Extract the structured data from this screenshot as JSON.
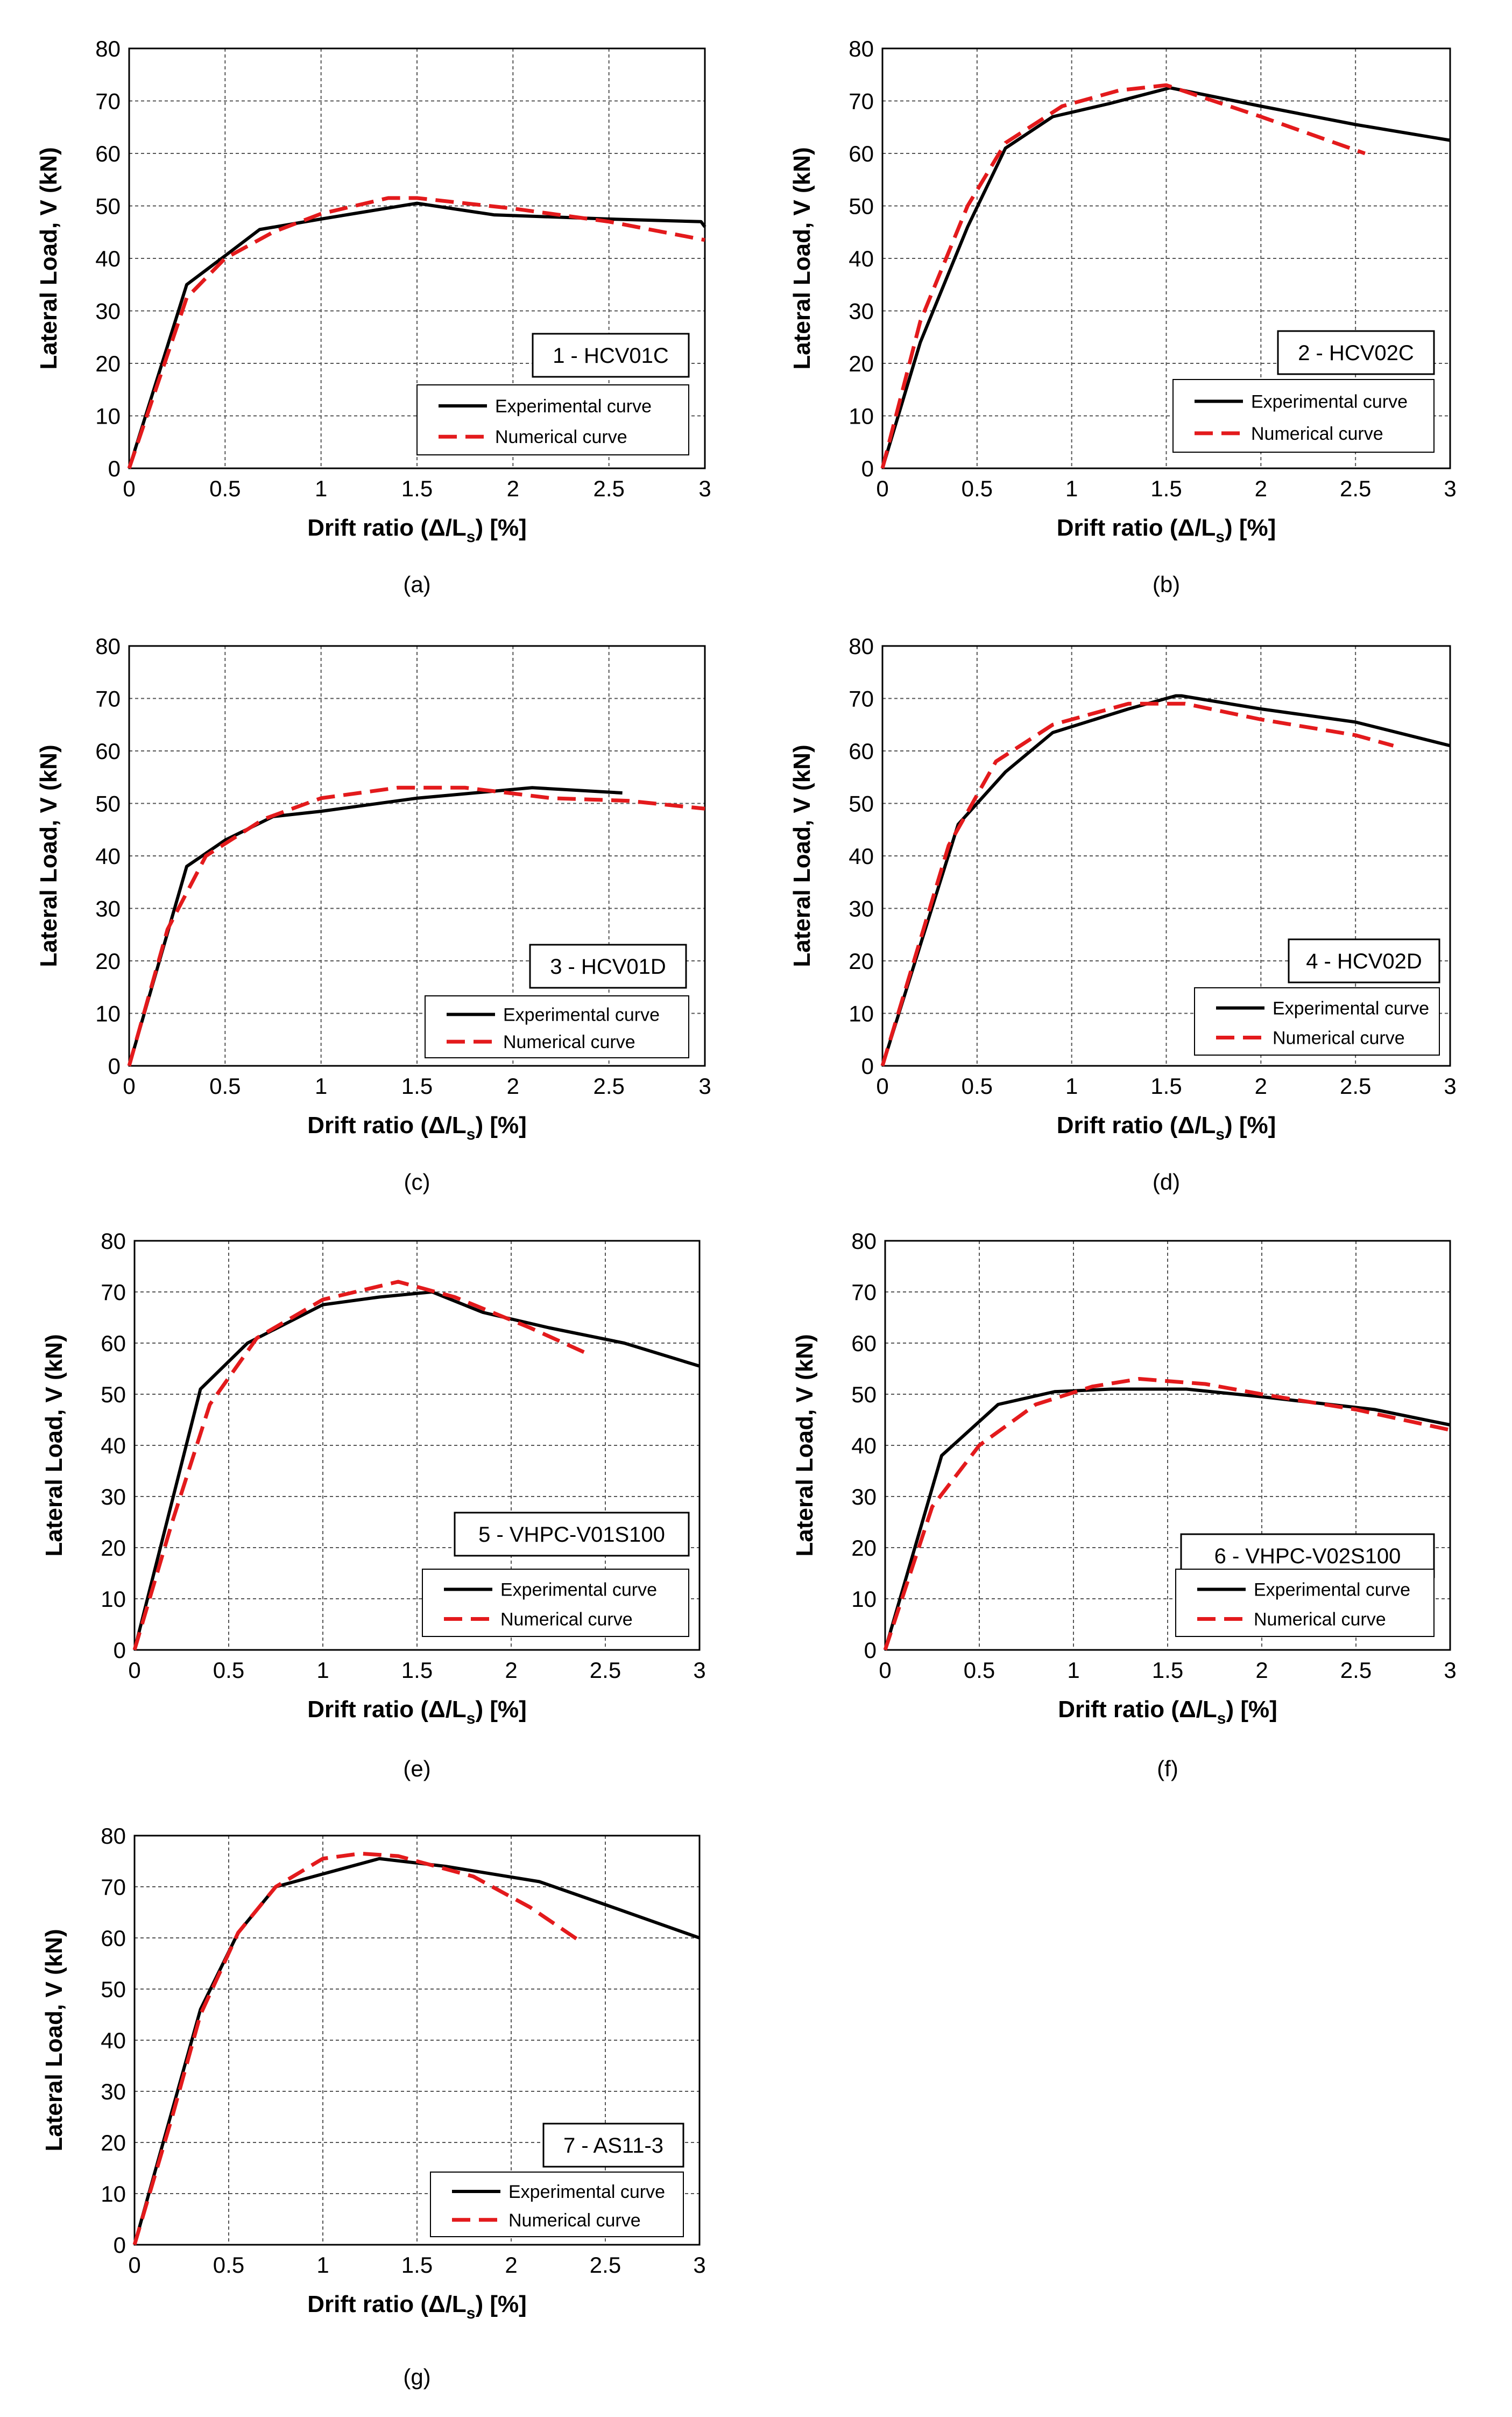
{
  "chart_data": [
    {
      "type": "line",
      "panel": "(a)",
      "label": "1 - HCV01C",
      "xlabel": "Drift ratio (Δ/L",
      "xlabel_sub": "s",
      "xlabel_end": ") [%]",
      "ylabel": "Lateral Load, V (kN)",
      "xlim": [
        0,
        3
      ],
      "ylim": [
        0,
        80
      ],
      "xticks": [
        "0",
        "0.5",
        "1",
        "1.5",
        "2",
        "2.5",
        "3"
      ],
      "yticks": [
        "0",
        "10",
        "20",
        "30",
        "40",
        "50",
        "60",
        "70",
        "80"
      ],
      "legend": [
        "Experimental curve",
        "Numerical curve"
      ],
      "series": [
        {
          "name": "Experimental curve",
          "x": [
            0,
            0.3,
            0.5,
            0.68,
            1.0,
            1.5,
            1.9,
            2.5,
            2.98,
            3.0
          ],
          "y": [
            0,
            35,
            40.5,
            45.5,
            47.5,
            50.5,
            48.3,
            47.5,
            47.0,
            46.0
          ]
        },
        {
          "name": "Numerical curve",
          "x": [
            0,
            0.3,
            0.5,
            0.75,
            1.0,
            1.35,
            1.5,
            2.0,
            2.5,
            3.0
          ],
          "y": [
            0,
            32.5,
            40.0,
            45.0,
            48.5,
            51.5,
            51.5,
            49.5,
            47.0,
            43.5
          ]
        }
      ]
    },
    {
      "type": "line",
      "panel": "(b)",
      "label": "2 - HCV02C",
      "xlabel": "Drift ratio (Δ/L",
      "xlabel_sub": "s",
      "xlabel_end": ") [%]",
      "ylabel": "Lateral Load, V (kN)",
      "xlim": [
        0,
        3
      ],
      "ylim": [
        0,
        80
      ],
      "xticks": [
        "0",
        "0.5",
        "1",
        "1.5",
        "2",
        "2.5",
        "3"
      ],
      "yticks": [
        "0",
        "10",
        "20",
        "30",
        "40",
        "50",
        "60",
        "70",
        "80"
      ],
      "legend": [
        "Experimental curve",
        "Numerical curve"
      ],
      "series": [
        {
          "name": "Experimental curve",
          "x": [
            0,
            0.2,
            0.45,
            0.65,
            0.9,
            1.2,
            1.52,
            2.0,
            2.5,
            3.0
          ],
          "y": [
            0,
            24,
            46,
            61,
            67,
            69.5,
            72.5,
            69,
            65.5,
            62.5
          ]
        },
        {
          "name": "Numerical curve",
          "x": [
            0,
            0.2,
            0.45,
            0.65,
            0.95,
            1.25,
            1.5,
            2.0,
            2.55
          ],
          "y": [
            0,
            28,
            50,
            62,
            69,
            72,
            73,
            67,
            60
          ]
        }
      ]
    },
    {
      "type": "line",
      "panel": "(c)",
      "label": "3 - HCV01D",
      "xlabel": "Drift ratio (Δ/L",
      "xlabel_sub": "s",
      "xlabel_end": ") [%]",
      "ylabel": "Lateral Load, V (kN)",
      "xlim": [
        0,
        3
      ],
      "ylim": [
        0,
        80
      ],
      "xticks": [
        "0",
        "0.5",
        "1",
        "1.5",
        "2",
        "2.5",
        "3"
      ],
      "yticks": [
        "0",
        "10",
        "20",
        "30",
        "40",
        "50",
        "60",
        "70",
        "80"
      ],
      "legend": [
        "Experimental curve",
        "Numerical curve"
      ],
      "series": [
        {
          "name": "Experimental curve",
          "x": [
            0,
            0.3,
            0.5,
            0.75,
            1.0,
            1.5,
            2.1,
            2.57
          ],
          "y": [
            0,
            38,
            43,
            47.5,
            48.5,
            51,
            53,
            52
          ]
        },
        {
          "name": "Numerical curve",
          "x": [
            0,
            0.2,
            0.4,
            0.7,
            1.0,
            1.4,
            1.75,
            2.2,
            2.6,
            3.0
          ],
          "y": [
            0,
            26,
            40,
            47,
            51,
            53,
            53,
            51,
            50.5,
            49
          ]
        }
      ]
    },
    {
      "type": "line",
      "panel": "(d)",
      "label": "4 - HCV02D",
      "xlabel": "Drift ratio (Δ/L",
      "xlabel_sub": "s",
      "xlabel_end": ") [%]",
      "ylabel": "Lateral Load, V (kN)",
      "xlim": [
        0,
        3
      ],
      "ylim": [
        0,
        80
      ],
      "xticks": [
        "0",
        "0.5",
        "1",
        "1.5",
        "2",
        "2.5",
        "3"
      ],
      "yticks": [
        "0",
        "10",
        "20",
        "30",
        "40",
        "50",
        "60",
        "70",
        "80"
      ],
      "legend": [
        "Experimental curve",
        "Numerical curve"
      ],
      "series": [
        {
          "name": "Experimental curve",
          "x": [
            0,
            0.4,
            0.65,
            0.9,
            1.3,
            1.55,
            1.58,
            2.0,
            2.5,
            3.0
          ],
          "y": [
            0,
            46,
            56,
            63.5,
            68,
            70.5,
            70.5,
            68,
            65.5,
            61
          ]
        },
        {
          "name": "Numerical curve",
          "x": [
            0,
            0.35,
            0.6,
            0.9,
            1.3,
            1.6,
            2.0,
            2.5,
            2.7
          ],
          "y": [
            0,
            42,
            58,
            65,
            69,
            69,
            66,
            63,
            61
          ]
        }
      ]
    },
    {
      "type": "line",
      "panel": "(e)",
      "label": "5 - VHPC-V01S100",
      "xlabel": "Drift ratio (Δ/L",
      "xlabel_sub": "s",
      "xlabel_end": ") [%]",
      "ylabel": "Lateral Load, V (kN)",
      "xlim": [
        0,
        3
      ],
      "ylim": [
        0,
        80
      ],
      "xticks": [
        "0",
        "0.5",
        "1",
        "1.5",
        "2",
        "2.5",
        "3"
      ],
      "yticks": [
        "0",
        "10",
        "20",
        "30",
        "40",
        "50",
        "60",
        "70",
        "80"
      ],
      "legend": [
        "Experimental curve",
        "Numerical curve"
      ],
      "series": [
        {
          "name": "Experimental curve",
          "x": [
            0,
            0.35,
            0.6,
            1.0,
            1.3,
            1.58,
            1.85,
            2.2,
            2.6,
            3.0
          ],
          "y": [
            0,
            51,
            60,
            67.5,
            69,
            70,
            66,
            63,
            60,
            55.5
          ]
        },
        {
          "name": "Numerical curve",
          "x": [
            0,
            0.2,
            0.4,
            0.65,
            1.0,
            1.4,
            1.7,
            2.1,
            2.4
          ],
          "y": [
            0,
            25,
            48,
            61,
            68.5,
            72,
            69,
            63,
            58
          ]
        }
      ]
    },
    {
      "type": "line",
      "panel": "(f)",
      "label": "6 - VHPC-V02S100",
      "xlabel": "Drift ratio (Δ/L",
      "xlabel_sub": "s",
      "xlabel_end": ") [%]",
      "ylabel": "Lateral Load, V (kN)",
      "xlim": [
        0,
        3
      ],
      "ylim": [
        0,
        80
      ],
      "xticks": [
        "0",
        "0.5",
        "1",
        "1.5",
        "2",
        "2.5",
        "3"
      ],
      "yticks": [
        "0",
        "10",
        "20",
        "30",
        "40",
        "50",
        "60",
        "70",
        "80"
      ],
      "legend": [
        "Experimental curve",
        "Numerical curve"
      ],
      "series": [
        {
          "name": "Experimental curve",
          "x": [
            0,
            0.3,
            0.6,
            0.9,
            1.2,
            1.6,
            2.0,
            2.6,
            3.0
          ],
          "y": [
            0,
            38,
            48,
            50.5,
            51,
            51,
            49.5,
            47,
            44
          ]
        },
        {
          "name": "Numerical curve",
          "x": [
            0,
            0.25,
            0.5,
            0.8,
            1.1,
            1.35,
            1.7,
            2.0,
            2.5,
            3.0
          ],
          "y": [
            0,
            28,
            40,
            48,
            51.5,
            53,
            52,
            50,
            47,
            43
          ]
        }
      ]
    },
    {
      "type": "line",
      "panel": "(g)",
      "label": "7 - AS11-3",
      "xlabel": "Drift ratio (Δ/L",
      "xlabel_sub": "s",
      "xlabel_end": ") [%]",
      "ylabel": "Lateral Load, V (kN)",
      "xlim": [
        0,
        3
      ],
      "ylim": [
        0,
        80
      ],
      "xticks": [
        "0",
        "0.5",
        "1",
        "1.5",
        "2",
        "2.5",
        "3"
      ],
      "yticks": [
        "0",
        "10",
        "20",
        "30",
        "40",
        "50",
        "60",
        "70",
        "80"
      ],
      "legend": [
        "Experimental curve",
        "Numerical curve"
      ],
      "series": [
        {
          "name": "Experimental curve",
          "x": [
            0,
            0.35,
            0.55,
            0.75,
            1.0,
            1.3,
            1.65,
            2.15,
            2.5,
            3.0
          ],
          "y": [
            0,
            46,
            61,
            70,
            72.5,
            75.5,
            74,
            71,
            66.5,
            60
          ]
        },
        {
          "name": "Numerical curve",
          "x": [
            0,
            0.2,
            0.35,
            0.55,
            0.75,
            1.0,
            1.2,
            1.4,
            1.8,
            2.1,
            2.38
          ],
          "y": [
            0,
            25,
            45,
            61,
            70,
            75.5,
            76.5,
            76,
            72,
            66,
            59
          ]
        }
      ]
    }
  ],
  "colors": {
    "experimental": "#000000",
    "numerical": "#e31a1c",
    "grid": "#555555",
    "box": "#000000"
  }
}
